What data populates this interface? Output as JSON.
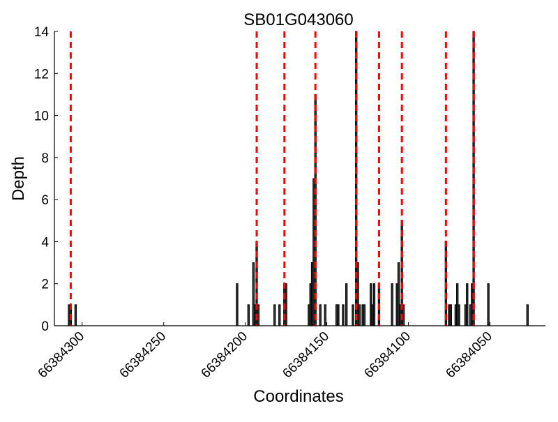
{
  "chart_data": {
    "type": "bar",
    "title": "SB01G043060",
    "xlabel": "Coordinates",
    "ylabel": "Depth",
    "xlim": [
      66384317,
      66384016
    ],
    "ylim": [
      0,
      14
    ],
    "x_reversed": true,
    "grid": false,
    "xticks": [
      66384300,
      66384250,
      66384200,
      66384150,
      66384100,
      66384050
    ],
    "yticks": [
      0,
      2,
      4,
      6,
      8,
      10,
      12,
      14
    ],
    "bar_color": "#333333",
    "marker_color": "#ff0000",
    "bars": [
      [
        66384308,
        1
      ],
      [
        66384307,
        1
      ],
      [
        66384304,
        1
      ],
      [
        66384205,
        2
      ],
      [
        66384198,
        1
      ],
      [
        66384195,
        3
      ],
      [
        66384194,
        1
      ],
      [
        66384193,
        4
      ],
      [
        66384192,
        1
      ],
      [
        66384182,
        1
      ],
      [
        66384179,
        1
      ],
      [
        66384176,
        2
      ],
      [
        66384175,
        2
      ],
      [
        66384161,
        1
      ],
      [
        66384160,
        2
      ],
      [
        66384159,
        3
      ],
      [
        66384158,
        7
      ],
      [
        66384157,
        11
      ],
      [
        66384154,
        1
      ],
      [
        66384151,
        1
      ],
      [
        66384144,
        1
      ],
      [
        66384143,
        1
      ],
      [
        66384140,
        1
      ],
      [
        66384138,
        2
      ],
      [
        66384134,
        1
      ],
      [
        66384132,
        14
      ],
      [
        66384131,
        3
      ],
      [
        66384130,
        1
      ],
      [
        66384128,
        1
      ],
      [
        66384127,
        1
      ],
      [
        66384123,
        2
      ],
      [
        66384122,
        1
      ],
      [
        66384121,
        2
      ],
      [
        66384118,
        2
      ],
      [
        66384110,
        2
      ],
      [
        66384107,
        2
      ],
      [
        66384106,
        3
      ],
      [
        66384105,
        1
      ],
      [
        66384104,
        5
      ],
      [
        66384103,
        1
      ],
      [
        66384077,
        4
      ],
      [
        66384075,
        1
      ],
      [
        66384074,
        1
      ],
      [
        66384071,
        1
      ],
      [
        66384070,
        2
      ],
      [
        66384069,
        1
      ],
      [
        66384065,
        1
      ],
      [
        66384064,
        2
      ],
      [
        66384062,
        1
      ],
      [
        66384061,
        2
      ],
      [
        66384060,
        14
      ],
      [
        66384051,
        2
      ],
      [
        66384027,
        1
      ]
    ],
    "marker_lines": [
      66384307,
      66384193,
      66384176,
      66384157,
      66384132,
      66384118,
      66384104,
      66384077,
      66384060
    ]
  }
}
